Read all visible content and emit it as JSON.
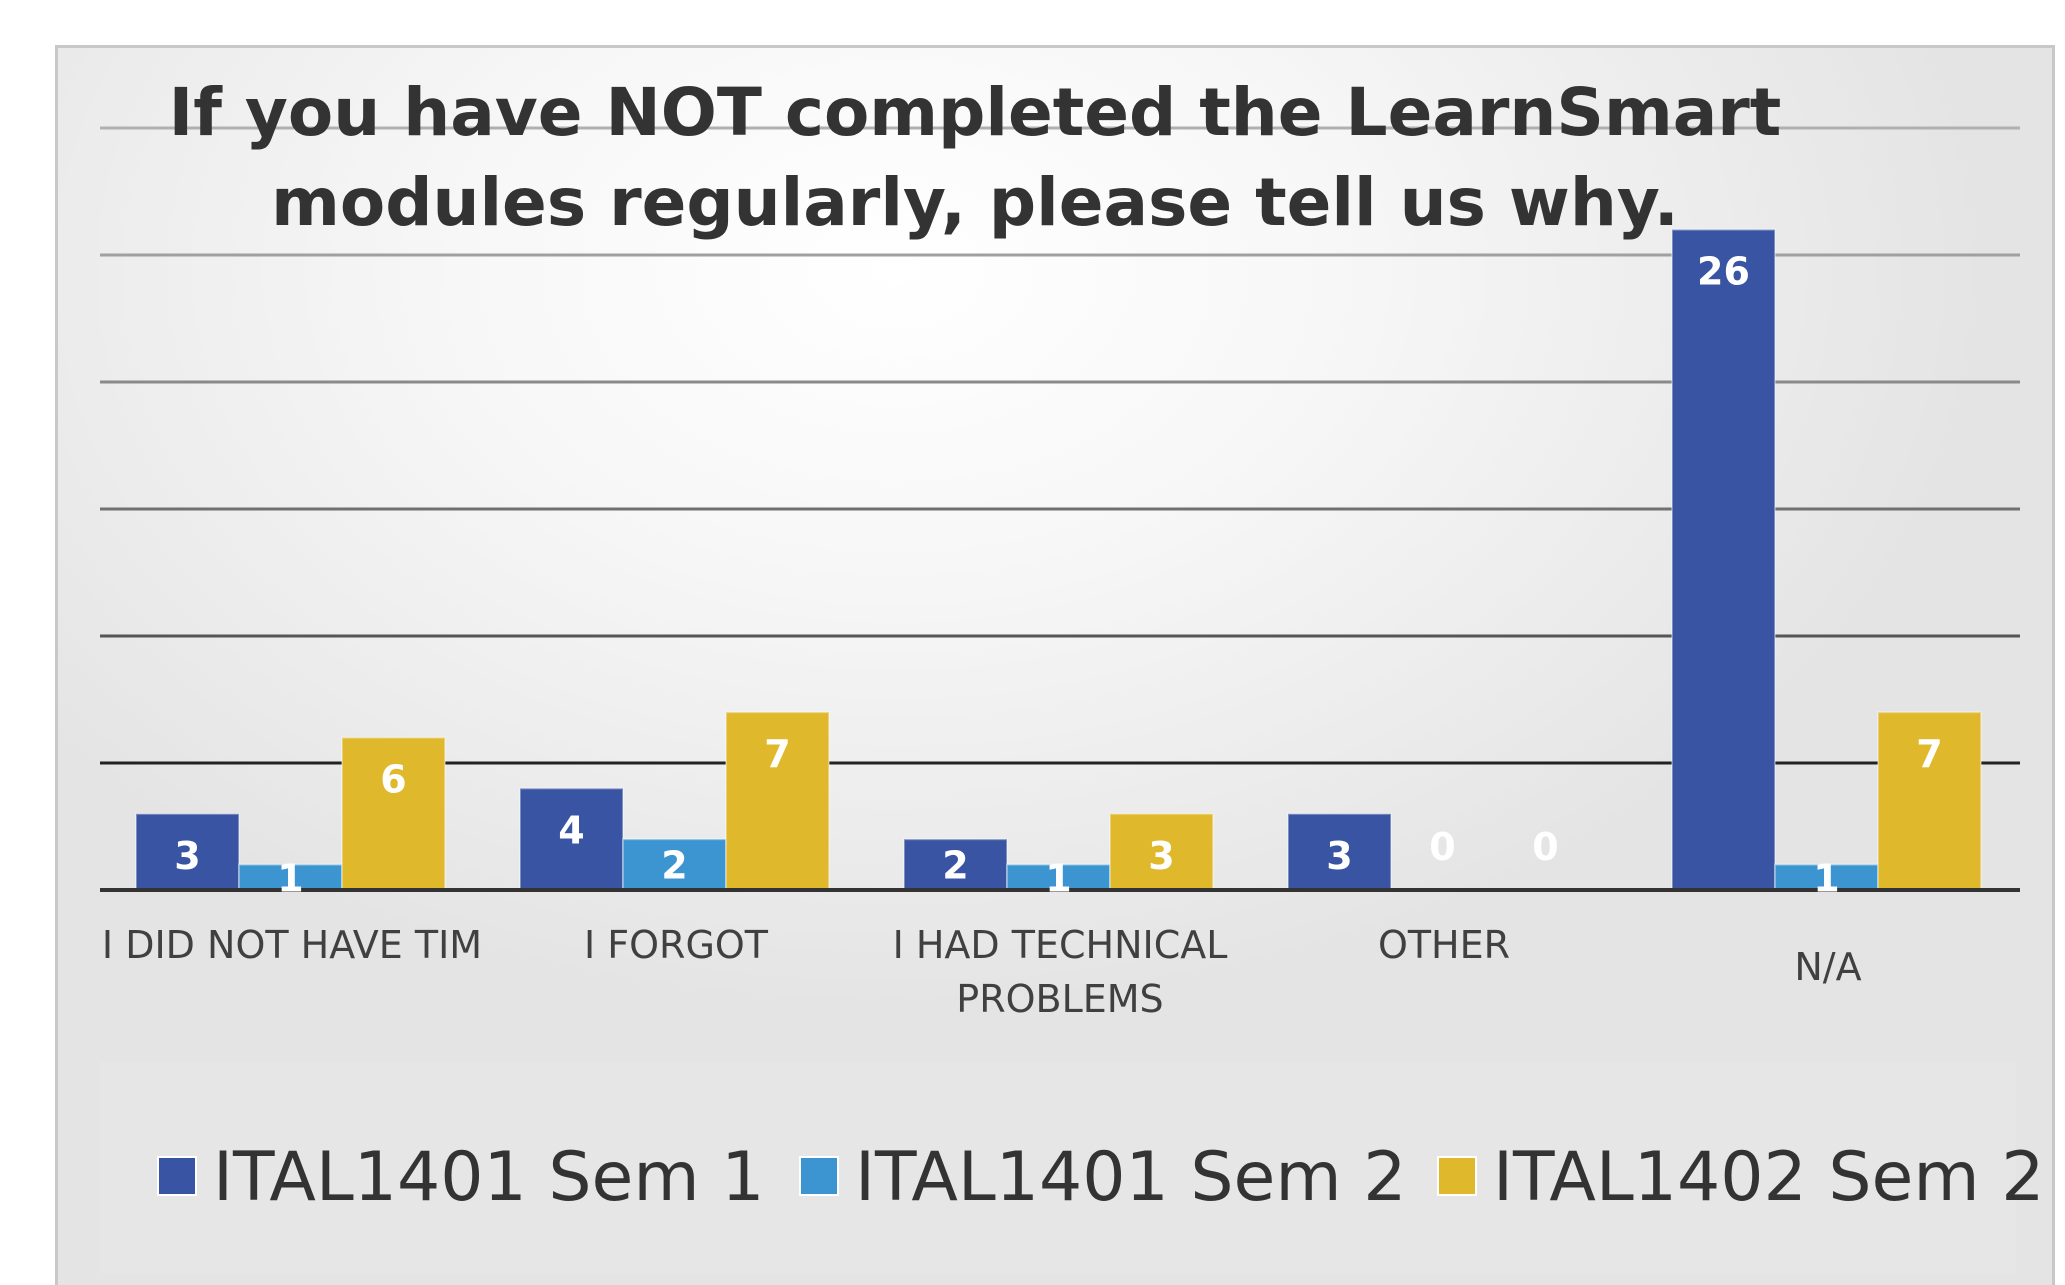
{
  "chart_data": {
    "type": "bar",
    "title": "If you have NOT completed the LearnSmart modules regularly, please tell us why.",
    "title_lines": [
      "If  you have NOT completed the LearnSmart",
      "modules regularly, please tell us why."
    ],
    "categories": [
      "I DID NOT HAVE TIM",
      "I FORGOT",
      "I HAD TECHNICAL PROBLEMS",
      "OTHER",
      "N/A"
    ],
    "category_lines": [
      [
        "I DID NOT HAVE TIM"
      ],
      [
        "I FORGOT"
      ],
      [
        "I HAD TECHNICAL",
        "PROBLEMS"
      ],
      [
        "OTHER"
      ],
      [
        "N/A"
      ]
    ],
    "series": [
      {
        "name": "ITAL1401 Sem 1",
        "color": "#3a54a4",
        "values": [
          3,
          4,
          2,
          3,
          26
        ]
      },
      {
        "name": "ITAL1401 Sem 2",
        "color": "#3c95d1",
        "values": [
          1,
          2,
          1,
          0,
          1
        ]
      },
      {
        "name": "ITAL1402 Sem 2",
        "color": "#e0b82b",
        "values": [
          6,
          7,
          3,
          0,
          7
        ]
      }
    ],
    "ylim": [
      0,
      30
    ],
    "y_gridlines": [
      5,
      10,
      15,
      20,
      25,
      30
    ],
    "grid": true,
    "data_labels": true,
    "legend_position": "bottom"
  }
}
